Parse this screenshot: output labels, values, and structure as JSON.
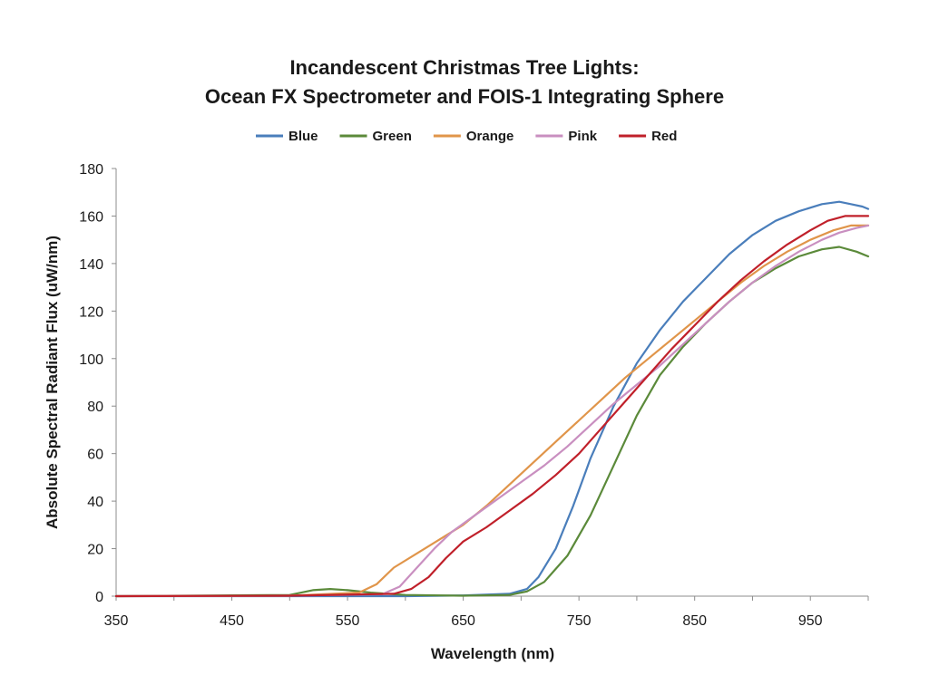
{
  "chart_data": {
    "type": "line",
    "title_lines": [
      "Incandescent Christmas Tree Lights:",
      "Ocean FX Spectrometer and FOIS-1 Integrating Sphere"
    ],
    "xlabel": "Wavelength (nm)",
    "ylabel": "Absolute Spectral Radiant Flux (uW/nm)",
    "xlim": [
      350,
      1000
    ],
    "ylim": [
      0,
      180
    ],
    "x_ticks": [
      "350",
      "450",
      "550",
      "650",
      "750",
      "850",
      "950"
    ],
    "y_ticks": [
      "0",
      "20",
      "40",
      "60",
      "80",
      "100",
      "120",
      "140",
      "160",
      "180"
    ],
    "grid": false,
    "legend_position": "top",
    "series": [
      {
        "name": "Blue",
        "color": "#4a7ebb",
        "points": [
          [
            350,
            0
          ],
          [
            500,
            0
          ],
          [
            550,
            0
          ],
          [
            600,
            0
          ],
          [
            650,
            0.3
          ],
          [
            690,
            1
          ],
          [
            705,
            3
          ],
          [
            715,
            8
          ],
          [
            730,
            20
          ],
          [
            745,
            38
          ],
          [
            760,
            58
          ],
          [
            780,
            80
          ],
          [
            800,
            98
          ],
          [
            820,
            112
          ],
          [
            840,
            124
          ],
          [
            860,
            134
          ],
          [
            880,
            144
          ],
          [
            900,
            152
          ],
          [
            920,
            158
          ],
          [
            940,
            162
          ],
          [
            960,
            165
          ],
          [
            975,
            166
          ],
          [
            985,
            165
          ],
          [
            995,
            164
          ],
          [
            1000,
            163
          ]
        ]
      },
      {
        "name": "Green",
        "color": "#5b8a3a",
        "points": [
          [
            350,
            0
          ],
          [
            500,
            0.5
          ],
          [
            520,
            2.5
          ],
          [
            535,
            3
          ],
          [
            550,
            2.5
          ],
          [
            570,
            1.5
          ],
          [
            600,
            0.5
          ],
          [
            650,
            0.2
          ],
          [
            690,
            0.5
          ],
          [
            705,
            2
          ],
          [
            720,
            6
          ],
          [
            740,
            17
          ],
          [
            760,
            34
          ],
          [
            780,
            55
          ],
          [
            800,
            76
          ],
          [
            820,
            93
          ],
          [
            840,
            105
          ],
          [
            860,
            115
          ],
          [
            880,
            124
          ],
          [
            900,
            132
          ],
          [
            920,
            138
          ],
          [
            940,
            143
          ],
          [
            960,
            146
          ],
          [
            975,
            147
          ],
          [
            990,
            145
          ],
          [
            1000,
            143
          ]
        ]
      },
      {
        "name": "Orange",
        "color": "#e0954a",
        "points": [
          [
            350,
            0
          ],
          [
            500,
            0.2
          ],
          [
            560,
            1.5
          ],
          [
            575,
            5
          ],
          [
            590,
            12
          ],
          [
            610,
            18
          ],
          [
            630,
            24
          ],
          [
            650,
            30
          ],
          [
            670,
            38
          ],
          [
            690,
            47
          ],
          [
            710,
            56
          ],
          [
            730,
            65
          ],
          [
            750,
            74
          ],
          [
            770,
            83
          ],
          [
            790,
            92
          ],
          [
            810,
            100
          ],
          [
            830,
            108
          ],
          [
            850,
            116
          ],
          [
            870,
            124
          ],
          [
            890,
            132
          ],
          [
            910,
            139
          ],
          [
            930,
            145
          ],
          [
            950,
            150
          ],
          [
            970,
            154
          ],
          [
            985,
            156
          ],
          [
            1000,
            156
          ]
        ]
      },
      {
        "name": "Pink",
        "color": "#c98fc0",
        "points": [
          [
            350,
            0
          ],
          [
            500,
            0.2
          ],
          [
            580,
            0.8
          ],
          [
            595,
            4
          ],
          [
            610,
            12
          ],
          [
            625,
            20
          ],
          [
            640,
            27
          ],
          [
            660,
            34
          ],
          [
            680,
            41
          ],
          [
            700,
            48
          ],
          [
            720,
            55
          ],
          [
            740,
            63
          ],
          [
            760,
            72
          ],
          [
            780,
            81
          ],
          [
            800,
            89
          ],
          [
            820,
            97
          ],
          [
            840,
            106
          ],
          [
            860,
            115
          ],
          [
            880,
            124
          ],
          [
            900,
            132
          ],
          [
            920,
            139
          ],
          [
            940,
            145
          ],
          [
            960,
            150
          ],
          [
            975,
            153
          ],
          [
            990,
            155
          ],
          [
            1000,
            156
          ]
        ]
      },
      {
        "name": "Red",
        "color": "#c0202a",
        "points": [
          [
            350,
            0
          ],
          [
            500,
            0.2
          ],
          [
            590,
            1
          ],
          [
            605,
            3
          ],
          [
            620,
            8
          ],
          [
            635,
            16
          ],
          [
            650,
            23
          ],
          [
            670,
            29
          ],
          [
            690,
            36
          ],
          [
            710,
            43
          ],
          [
            730,
            51
          ],
          [
            750,
            60
          ],
          [
            770,
            71
          ],
          [
            790,
            82
          ],
          [
            810,
            93
          ],
          [
            830,
            104
          ],
          [
            850,
            114
          ],
          [
            870,
            124
          ],
          [
            890,
            133
          ],
          [
            910,
            141
          ],
          [
            930,
            148
          ],
          [
            950,
            154
          ],
          [
            965,
            158
          ],
          [
            980,
            160
          ],
          [
            1000,
            160
          ]
        ]
      }
    ]
  }
}
